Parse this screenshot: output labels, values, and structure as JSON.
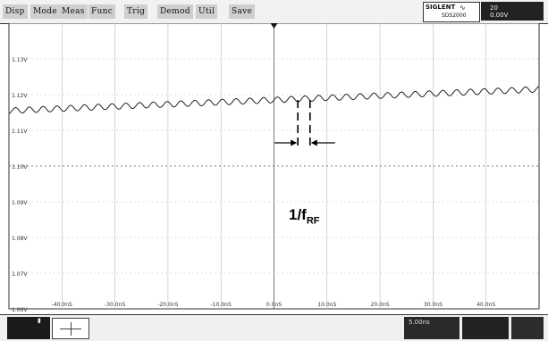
{
  "menu": {
    "items": [
      "Disp",
      "Mode",
      "Meas",
      "Func",
      "Trig",
      "Demod",
      "Util",
      "Save"
    ]
  },
  "brand": {
    "logo": "SIGLENT",
    "model": "SDS2000",
    "wave_icon": "wave-icon"
  },
  "status": {
    "line1": "20",
    "line2": "0.00V"
  },
  "chart_data": {
    "type": "line",
    "x_unit": "ns",
    "x_ticks": [
      "-40.0nS",
      "-30.0nS",
      "-20.0nS",
      "-10.0nS",
      "0.0nS",
      "10.0nS",
      "20.0nS",
      "30.0nS",
      "40.0nS"
    ],
    "y_ticks": [
      "1.13V",
      "1.12V",
      "1.11V",
      "1.10V",
      "1.09V",
      "1.08V",
      "1.07V",
      "1.06V"
    ],
    "xlim": [
      -50,
      50
    ],
    "ylim": [
      1.06,
      1.14
    ],
    "grid": true,
    "series": [
      {
        "trend": {
          "start": [
            -50,
            1.1155
          ],
          "end": [
            50,
            1.1215
          ]
        },
        "ripple_amplitude": 0.0008,
        "ripple_period_ns": 2.6
      }
    ],
    "annotation": {
      "label_main": "1/f",
      "label_sub": "RF",
      "marker_x": [
        4.5,
        6.8
      ],
      "trigger_x": 0
    }
  },
  "footer": {
    "timebase": "5.00ns"
  }
}
